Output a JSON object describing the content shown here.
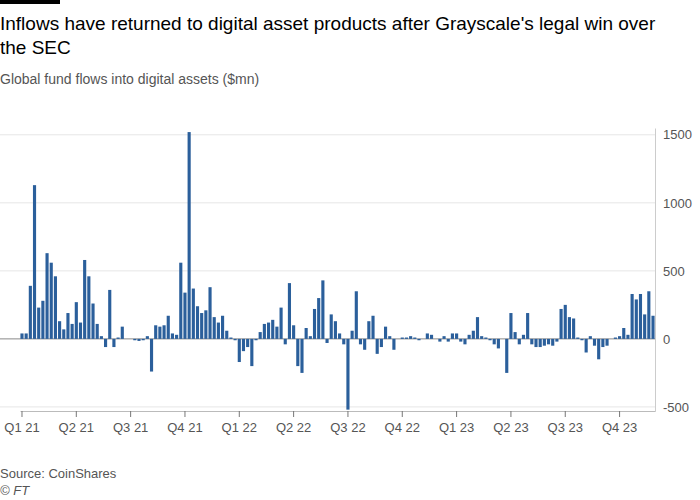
{
  "chart_data": {
    "type": "bar",
    "title": "Inflows have returned to digital asset products after Grayscale's legal win over the SEC",
    "subtitle": "Global fund flows into digital assets ($mn)",
    "source": "Source: CoinShares",
    "credit": "© FT",
    "color": "#2b5f9b",
    "grid": true,
    "ylim": [
      -530,
      1550
    ],
    "yticks": [
      -500,
      0,
      500,
      1000,
      1500
    ],
    "categories": [
      "Q1 21",
      null,
      null,
      null,
      null,
      null,
      null,
      null,
      null,
      null,
      null,
      null,
      null,
      "Q2 21",
      null,
      null,
      null,
      null,
      null,
      null,
      null,
      null,
      null,
      null,
      null,
      null,
      "Q3 21",
      null,
      null,
      null,
      null,
      null,
      null,
      null,
      null,
      null,
      null,
      null,
      null,
      "Q4 21",
      null,
      null,
      null,
      null,
      null,
      null,
      null,
      null,
      null,
      null,
      null,
      null,
      "Q1 22",
      null,
      null,
      null,
      null,
      null,
      null,
      null,
      null,
      null,
      null,
      null,
      null,
      "Q2 22",
      null,
      null,
      null,
      null,
      null,
      null,
      null,
      null,
      null,
      null,
      null,
      null,
      "Q3 22",
      null,
      null,
      null,
      null,
      null,
      null,
      null,
      null,
      null,
      null,
      null,
      null,
      "Q4 22",
      null,
      null,
      null,
      null,
      null,
      null,
      null,
      null,
      null,
      null,
      null,
      null,
      "Q1 23",
      null,
      null,
      null,
      null,
      null,
      null,
      null,
      null,
      null,
      null,
      null,
      null,
      "Q2 23",
      null,
      null,
      null,
      null,
      null,
      null,
      null,
      null,
      null,
      null,
      null,
      null,
      "Q3 23",
      null,
      null,
      null,
      null,
      null,
      null,
      null,
      null,
      null,
      null,
      null,
      null,
      "Q4 23",
      null,
      null,
      null,
      null,
      null,
      null,
      null,
      null
    ],
    "values": [
      40,
      40,
      390,
      1130,
      230,
      280,
      630,
      560,
      460,
      130,
      70,
      190,
      110,
      270,
      120,
      580,
      460,
      260,
      110,
      20,
      -60,
      360,
      -60,
      10,
      90,
      0,
      0,
      -10,
      -15,
      -10,
      20,
      -240,
      100,
      90,
      100,
      170,
      40,
      30,
      560,
      340,
      1520,
      370,
      240,
      190,
      210,
      380,
      160,
      120,
      170,
      60,
      10,
      -10,
      -170,
      -90,
      -60,
      -200,
      -10,
      50,
      110,
      120,
      140,
      90,
      230,
      -40,
      410,
      100,
      -200,
      -250,
      80,
      20,
      220,
      300,
      430,
      -30,
      180,
      130,
      40,
      -40,
      -520,
      60,
      350,
      -40,
      -80,
      130,
      170,
      -110,
      -60,
      90,
      20,
      -80,
      0,
      10,
      10,
      20,
      10,
      -10,
      0,
      40,
      30,
      0,
      -20,
      20,
      -20,
      40,
      40,
      -20,
      -40,
      30,
      60,
      160,
      20,
      10,
      -10,
      -40,
      -70,
      0,
      -250,
      190,
      50,
      -40,
      30,
      190,
      -40,
      -60,
      -60,
      -50,
      -40,
      -50,
      -20,
      220,
      250,
      160,
      150,
      10,
      -10,
      -100,
      20,
      -50,
      -150,
      -60,
      -50,
      0,
      10,
      20,
      80,
      30,
      330,
      290,
      330,
      180,
      350,
      170
    ]
  }
}
